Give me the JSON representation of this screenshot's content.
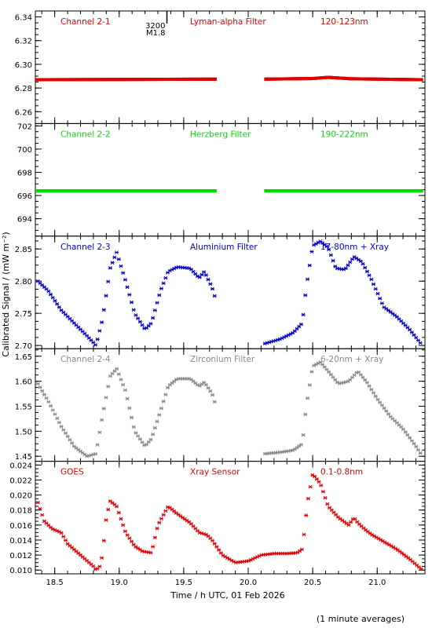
{
  "chart_data": [
    {
      "type": "scatter",
      "labels": [
        "Channel 2-1",
        "Lyman-alpha Filter",
        "120-123nm"
      ],
      "color": "#e00000",
      "ylim": [
        6.25,
        6.345
      ],
      "yticks": [
        "6.26",
        "6.28",
        "6.30",
        "6.32",
        "6.34"
      ],
      "event": {
        "number": "3200",
        "class": "M1.8",
        "time": 19.37
      },
      "series": [
        {
          "x": [
            18.35,
            19.75
          ],
          "y": [
            6.287,
            6.2875
          ]
        },
        {
          "x": [
            20.13,
            20.5,
            20.62,
            20.8,
            21.35
          ],
          "y": [
            6.2875,
            6.288,
            6.289,
            6.2878,
            6.287
          ]
        }
      ]
    },
    {
      "type": "scatter",
      "labels": [
        "Channel 2-2",
        "Herzberg Filter",
        "190-222nm"
      ],
      "color": "#00dd00",
      "ylim": [
        692.5,
        702.2
      ],
      "yticks": [
        "694",
        "696",
        "698",
        "700",
        "702"
      ],
      "series": [
        {
          "x": [
            18.35,
            19.75
          ],
          "y": [
            696.4,
            696.4
          ]
        },
        {
          "x": [
            20.13,
            21.35
          ],
          "y": [
            696.4,
            696.4
          ]
        }
      ]
    },
    {
      "type": "scatter",
      "labels": [
        "Channel 2-3",
        "Aluminium Filter",
        "17-80nm + Xray"
      ],
      "color": "#0000c8",
      "ylim": [
        2.695,
        2.87
      ],
      "yticks": [
        "2.70",
        "2.75",
        "2.80",
        "2.85"
      ],
      "series": [
        {
          "x": [
            18.37,
            18.45,
            18.55,
            18.65,
            18.75,
            18.82,
            18.87,
            18.93,
            18.98,
            19.05,
            19.12,
            19.2,
            19.25,
            19.32,
            19.38,
            19.45,
            19.55,
            19.62,
            19.66,
            19.72,
            19.75
          ],
          "y": [
            2.8,
            2.785,
            2.755,
            2.735,
            2.715,
            2.7,
            2.74,
            2.82,
            2.845,
            2.8,
            2.75,
            2.725,
            2.735,
            2.785,
            2.815,
            2.822,
            2.82,
            2.805,
            2.815,
            2.79,
            2.77
          ]
        },
        {
          "x": [
            20.13,
            20.25,
            20.35,
            20.42,
            20.45,
            20.5,
            20.56,
            20.62,
            20.68,
            20.75,
            20.82,
            20.88,
            20.95,
            21.05,
            21.15,
            21.25,
            21.35
          ],
          "y": [
            2.703,
            2.71,
            2.72,
            2.735,
            2.79,
            2.855,
            2.862,
            2.852,
            2.82,
            2.818,
            2.838,
            2.83,
            2.805,
            2.76,
            2.745,
            2.725,
            2.7
          ]
        }
      ]
    },
    {
      "type": "scatter",
      "labels": [
        "Channel 2-4",
        "Zirconium Filter",
        "6-20nm + Xray"
      ],
      "color": "#888888",
      "ylim": [
        1.44,
        1.665
      ],
      "yticks": [
        "1.45",
        "1.50",
        "1.55",
        "1.60",
        "1.65"
      ],
      "series": [
        {
          "x": [
            18.37,
            18.45,
            18.55,
            18.65,
            18.75,
            18.82,
            18.87,
            18.93,
            18.98,
            19.05,
            19.12,
            19.2,
            19.25,
            19.32,
            19.38,
            19.45,
            19.55,
            19.62,
            19.66,
            19.72,
            19.75
          ],
          "y": [
            1.595,
            1.56,
            1.51,
            1.47,
            1.45,
            1.455,
            1.53,
            1.61,
            1.625,
            1.58,
            1.5,
            1.47,
            1.485,
            1.54,
            1.59,
            1.605,
            1.605,
            1.59,
            1.598,
            1.575,
            1.55
          ]
        },
        {
          "x": [
            20.13,
            20.25,
            20.35,
            20.42,
            20.45,
            20.5,
            20.56,
            20.62,
            20.7,
            20.78,
            20.85,
            20.92,
            21.0,
            21.1,
            21.2,
            21.3,
            21.35
          ],
          "y": [
            1.455,
            1.458,
            1.462,
            1.475,
            1.55,
            1.63,
            1.638,
            1.62,
            1.595,
            1.6,
            1.62,
            1.598,
            1.565,
            1.53,
            1.505,
            1.47,
            1.45
          ]
        }
      ]
    },
    {
      "type": "scatter",
      "labels": [
        "GOES",
        "Xray Sensor",
        "0.1-0.8nm"
      ],
      "color": "#e00000",
      "ylim": [
        0.0095,
        0.0245
      ],
      "yticks": [
        "0.010",
        "0.012",
        "0.014",
        "0.016",
        "0.018",
        "0.020",
        "0.022",
        "0.024"
      ],
      "series": [
        {
          "x": [
            18.37,
            18.42,
            18.48,
            18.55,
            18.6,
            18.7,
            18.8,
            18.82,
            18.85,
            18.87,
            18.9,
            18.93,
            18.98,
            19.05,
            19.12,
            19.18,
            19.25,
            19.3,
            19.38,
            19.45,
            19.55,
            19.62,
            19.68,
            19.72,
            19.8,
            19.9,
            20.0,
            20.1,
            20.2,
            20.3,
            20.38,
            20.42,
            20.46,
            20.5,
            20.56,
            20.62,
            20.7,
            20.78,
            20.82,
            20.85,
            20.9,
            20.95,
            21.05,
            21.15,
            21.25,
            21.35
          ],
          "y": [
            0.019,
            0.0165,
            0.0155,
            0.015,
            0.0135,
            0.012,
            0.0105,
            0.01,
            0.0105,
            0.012,
            0.017,
            0.0192,
            0.0185,
            0.015,
            0.0132,
            0.0125,
            0.0123,
            0.016,
            0.0185,
            0.0175,
            0.0163,
            0.015,
            0.0147,
            0.014,
            0.012,
            0.011,
            0.0112,
            0.012,
            0.0122,
            0.0122,
            0.0123,
            0.0128,
            0.019,
            0.0228,
            0.0215,
            0.0185,
            0.017,
            0.016,
            0.017,
            0.0163,
            0.0155,
            0.0148,
            0.0138,
            0.0128,
            0.0115,
            0.01
          ]
        }
      ]
    }
  ],
  "x_axis": {
    "xlim": [
      18.35,
      21.37
    ],
    "tick_values": [
      18.5,
      19.0,
      19.5,
      20.0,
      20.5,
      21.0
    ],
    "tick_labels": [
      "18.5",
      "19.0",
      "19.5",
      "20.0",
      "20.5",
      "21.0"
    ],
    "label": "Time / h UTC, 01 Feb 2026"
  },
  "y_axis_label": "Calibrated Signal / (mW m⁻²)",
  "footnote": "(1 minute averages)"
}
